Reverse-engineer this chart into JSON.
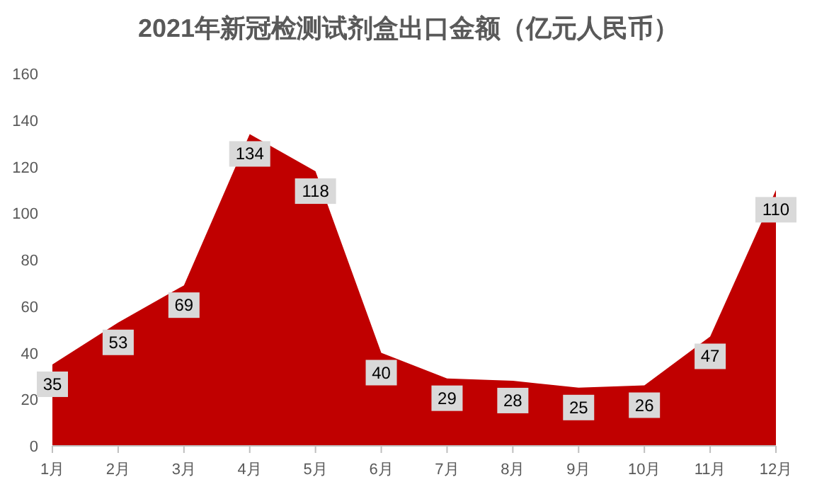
{
  "chart_data": {
    "type": "area",
    "title": "2021年新冠检测试剂盒出口金额（亿元人民币）",
    "categories": [
      "1月",
      "2月",
      "3月",
      "4月",
      "5月",
      "6月",
      "7月",
      "8月",
      "9月",
      "10月",
      "11月",
      "12月"
    ],
    "values": [
      35,
      53,
      69,
      134,
      118,
      40,
      29,
      28,
      25,
      26,
      47,
      110
    ],
    "color": "#c00000",
    "ylim": [
      0,
      160
    ],
    "yticks": [
      0,
      20,
      40,
      60,
      80,
      100,
      120,
      140,
      160
    ],
    "grid": false,
    "data_labels": true
  }
}
